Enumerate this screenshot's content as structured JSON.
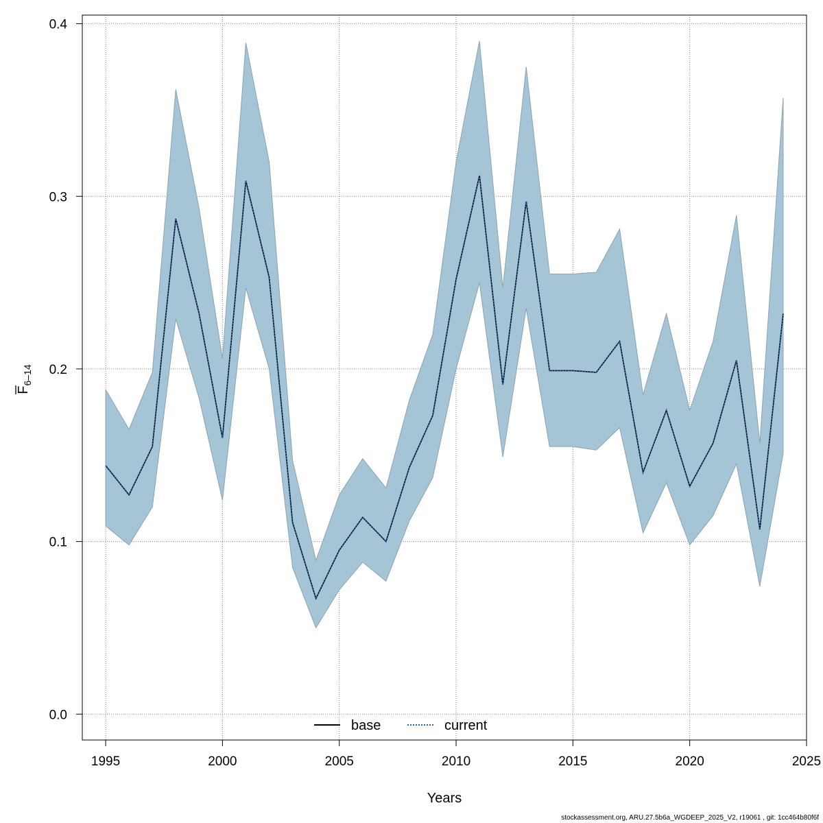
{
  "chart_data": {
    "type": "line",
    "title": "",
    "xlabel": "Years",
    "ylabel": {
      "main": "F",
      "subscript": "6–14",
      "overbar": true
    },
    "xlim": [
      1994,
      2025
    ],
    "ylim": [
      -0.015,
      0.405
    ],
    "xticks": [
      1995,
      2000,
      2005,
      2010,
      2015,
      2020,
      2025
    ],
    "yticks": [
      0.0,
      0.1,
      0.2,
      0.3,
      0.4
    ],
    "ytick_labels": [
      "0.0",
      "0.1",
      "0.2",
      "0.3",
      "0.4"
    ],
    "grid": true,
    "legend_position": "bottom-center",
    "x": [
      1995,
      1996,
      1997,
      1998,
      1999,
      2000,
      2001,
      2002,
      2003,
      2004,
      2005,
      2006,
      2007,
      2008,
      2009,
      2010,
      2011,
      2012,
      2013,
      2014,
      2015,
      2016,
      2017,
      2018,
      2019,
      2020,
      2021,
      2022,
      2023,
      2024
    ],
    "band": {
      "name": "confidence interval",
      "color": "#a5c4d5",
      "lower": [
        0.109,
        0.098,
        0.12,
        0.229,
        0.183,
        0.124,
        0.247,
        0.2,
        0.085,
        0.05,
        0.072,
        0.088,
        0.077,
        0.112,
        0.137,
        0.2,
        0.25,
        0.149,
        0.235,
        0.155,
        0.155,
        0.153,
        0.166,
        0.105,
        0.134,
        0.098,
        0.115,
        0.145,
        0.074,
        0.151
      ],
      "upper": [
        0.188,
        0.165,
        0.198,
        0.362,
        0.293,
        0.206,
        0.389,
        0.32,
        0.147,
        0.089,
        0.127,
        0.148,
        0.131,
        0.182,
        0.22,
        0.32,
        0.39,
        0.247,
        0.375,
        0.255,
        0.255,
        0.256,
        0.281,
        0.185,
        0.232,
        0.176,
        0.216,
        0.289,
        0.157,
        0.357
      ]
    },
    "series": [
      {
        "name": "base",
        "style": "solid",
        "color": "#000000",
        "values": [
          0.144,
          0.127,
          0.155,
          0.287,
          0.232,
          0.16,
          0.309,
          0.253,
          0.111,
          0.067,
          0.095,
          0.114,
          0.1,
          0.143,
          0.173,
          0.252,
          0.312,
          0.191,
          0.297,
          0.199,
          0.199,
          0.198,
          0.216,
          0.14,
          0.176,
          0.132,
          0.157,
          0.205,
          0.107,
          0.232
        ]
      },
      {
        "name": "current",
        "style": "dotted",
        "color": "#1a6aa0",
        "values": [
          0.144,
          0.127,
          0.155,
          0.287,
          0.232,
          0.16,
          0.309,
          0.253,
          0.111,
          0.067,
          0.095,
          0.114,
          0.1,
          0.143,
          0.173,
          0.252,
          0.312,
          0.191,
          0.297,
          0.199,
          0.199,
          0.198,
          0.216,
          0.14,
          0.176,
          0.132,
          0.157,
          0.205,
          0.107,
          0.232
        ]
      }
    ]
  },
  "footer": "stockassessment.org, ARU.27.5b6a_WGDEEP_2025_V2, r19061 , git: 1cc464b80f6f"
}
